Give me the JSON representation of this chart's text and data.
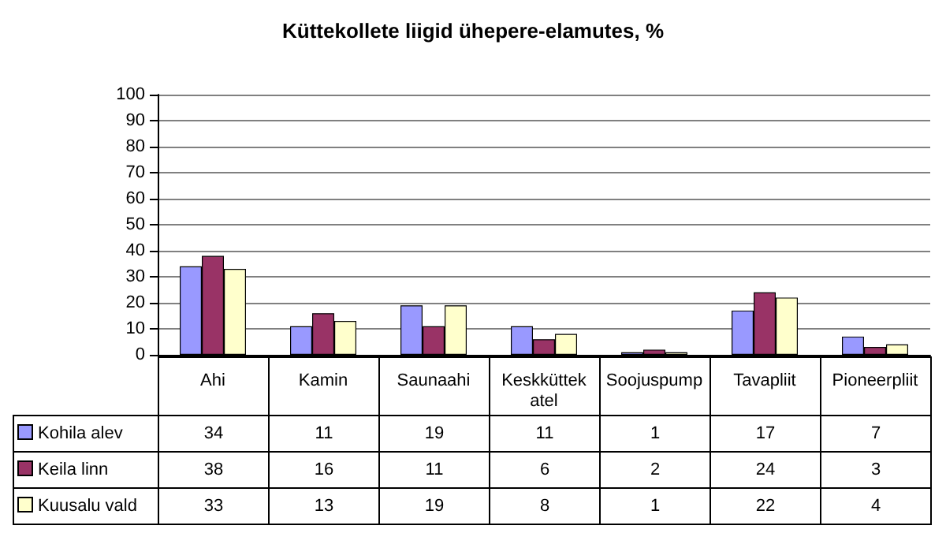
{
  "chart_data": {
    "type": "bar",
    "title": "Küttekollete liigid ühepere-elamutes, %",
    "categories": [
      "Ahi",
      "Kamin",
      "Saunaahi",
      "Keskküttekatel",
      "Soojuspump",
      "Tavapliit",
      "Pioneerpliit"
    ],
    "series": [
      {
        "name": "Kohila alev",
        "color": "#9999ff",
        "values": [
          34,
          11,
          19,
          11,
          1,
          17,
          7
        ]
      },
      {
        "name": "Keila linn",
        "color": "#993366",
        "values": [
          38,
          16,
          11,
          6,
          2,
          24,
          3
        ]
      },
      {
        "name": "Kuusalu vald",
        "color": "#ffffcc",
        "values": [
          33,
          13,
          19,
          8,
          1,
          22,
          4
        ]
      }
    ],
    "ylim": [
      0,
      100
    ],
    "yticks": [
      0,
      10,
      20,
      30,
      40,
      50,
      60,
      70,
      80,
      90,
      100
    ],
    "grid": "y",
    "legend": "bottom",
    "data_labels": true
  }
}
